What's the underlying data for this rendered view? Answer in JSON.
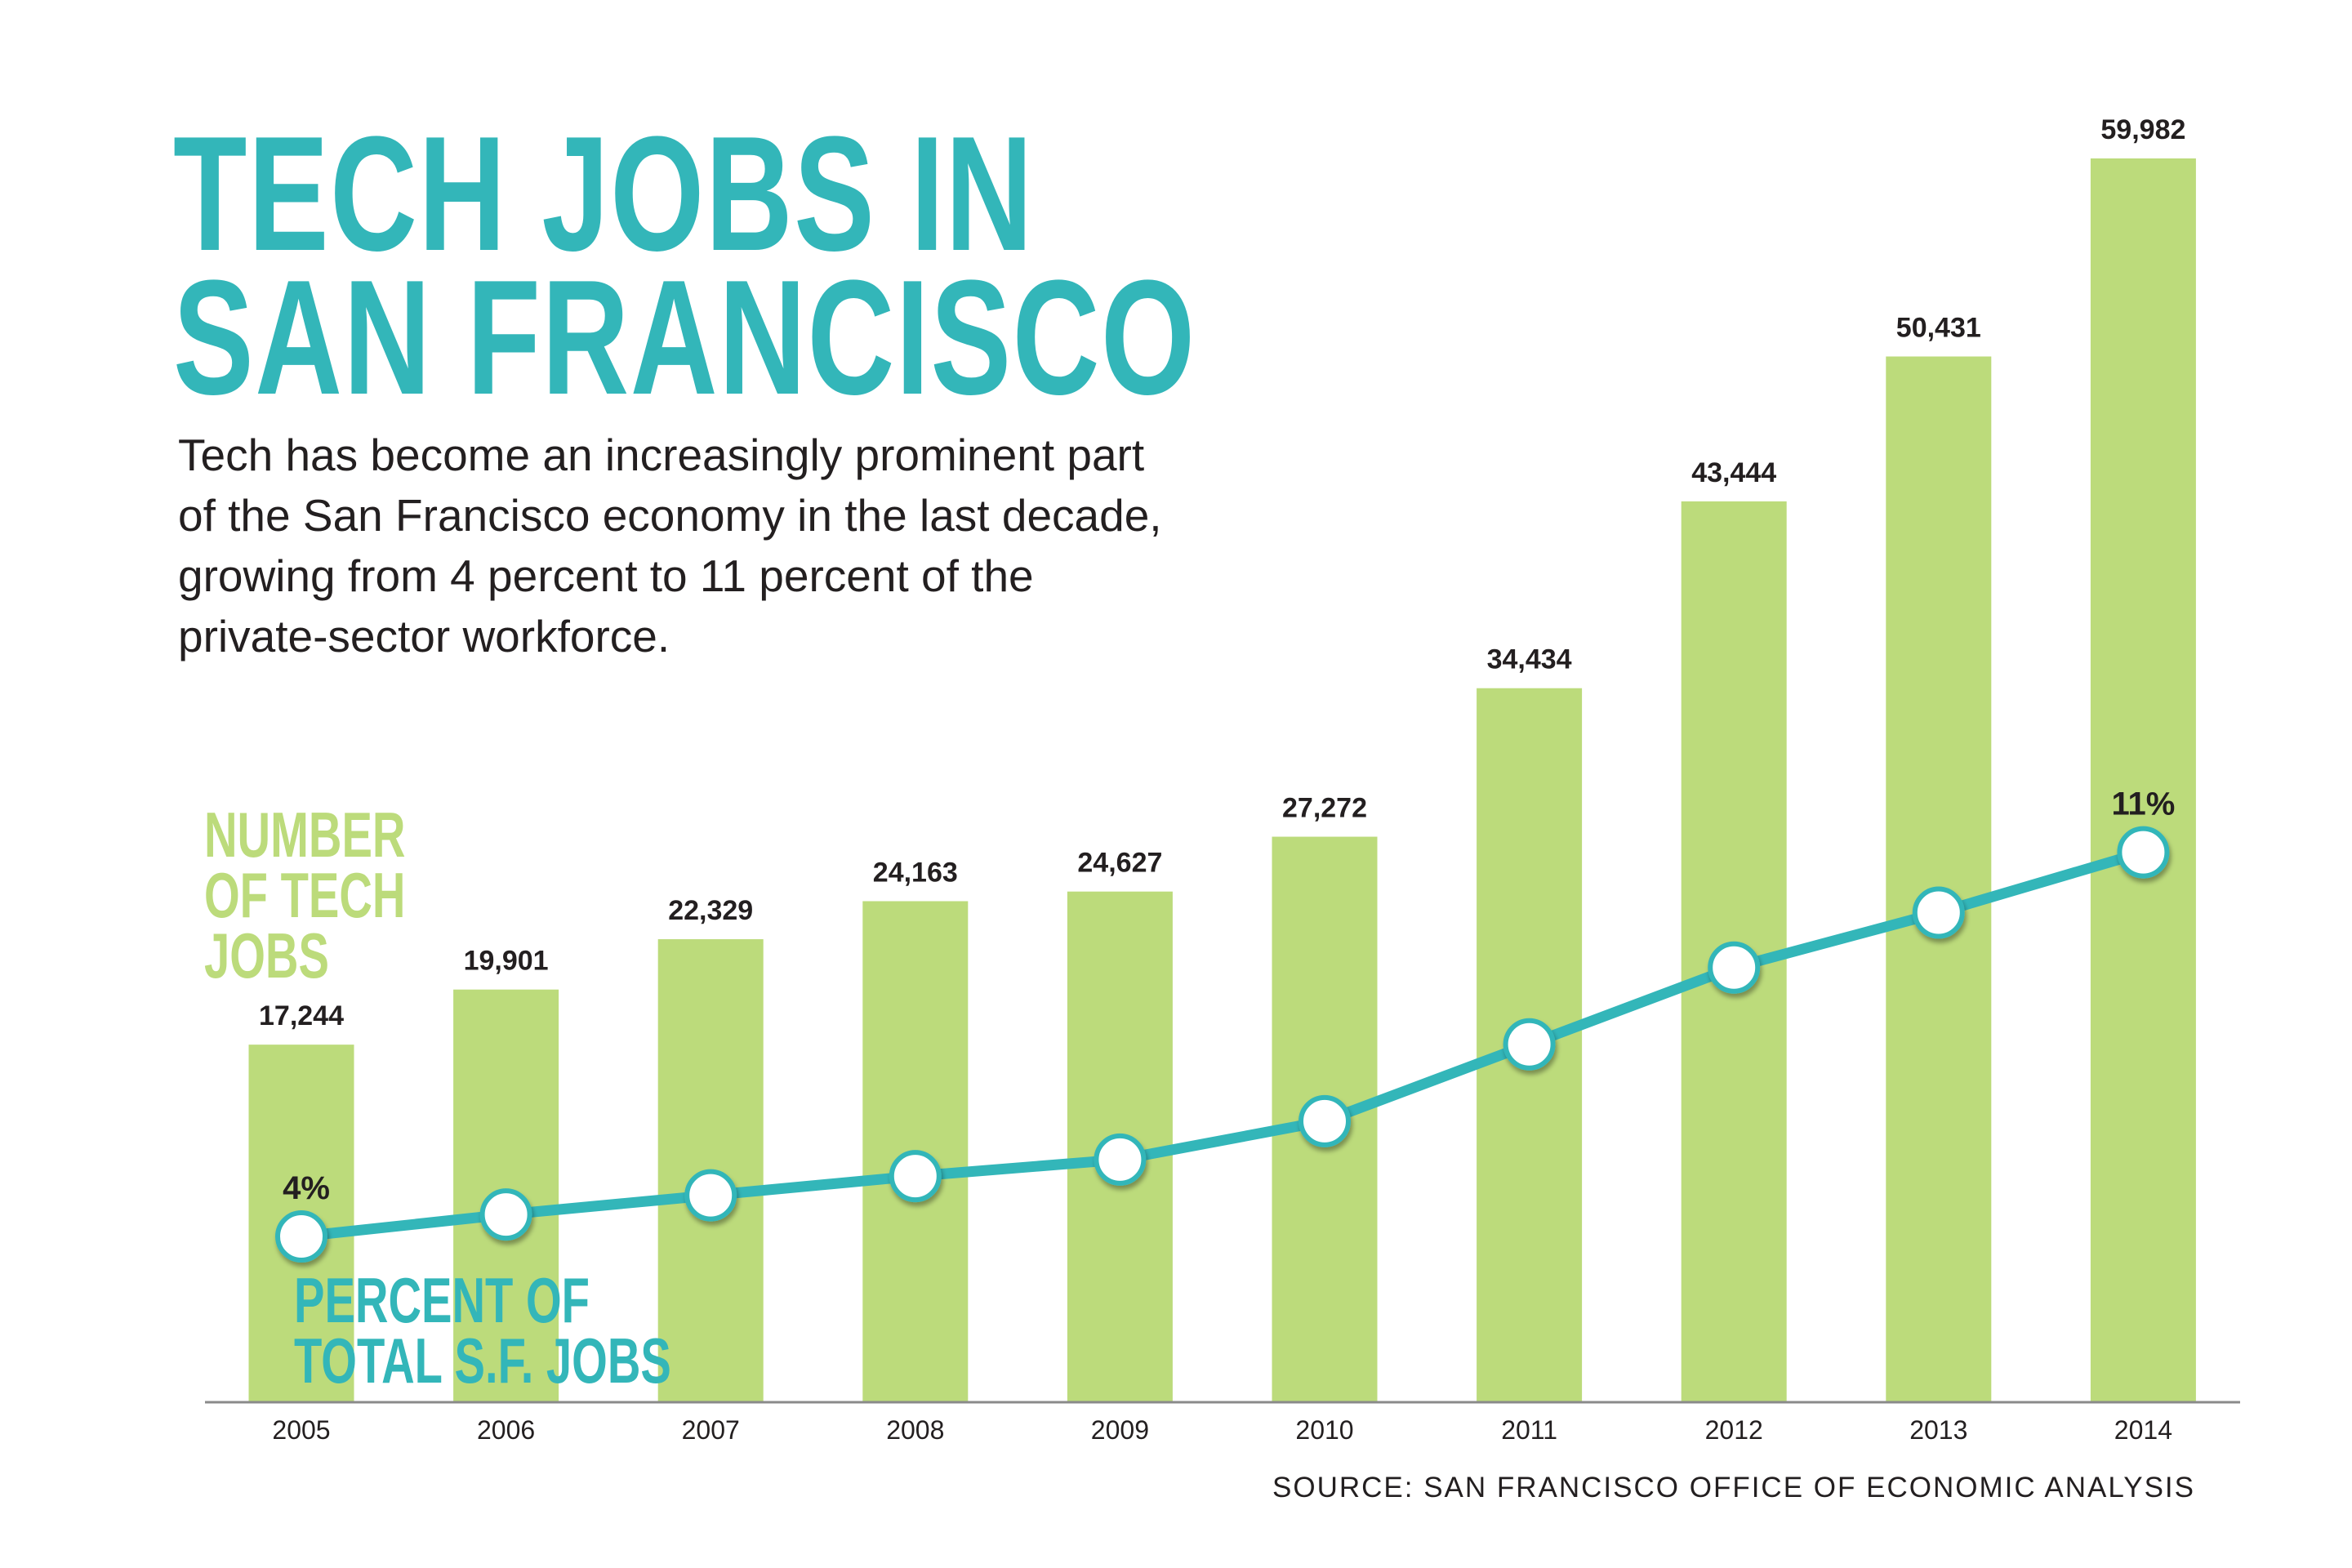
{
  "chart_data": {
    "type": "bar+line",
    "title": "TECH JOBS IN SAN FRANCISCO",
    "subtitle": "Tech has become an increasingly prominent part of the San Francisco economy in the last decade, growing from 4 percent to 11 percent of the private-sector workforce.",
    "categories": [
      "2005",
      "2006",
      "2007",
      "2008",
      "2009",
      "2010",
      "2011",
      "2012",
      "2013",
      "2014"
    ],
    "series": [
      {
        "name": "NUMBER OF TECH JOBS",
        "type": "bar",
        "color": "#bcdb7b",
        "values": [
          17244,
          19901,
          22329,
          24163,
          24627,
          27272,
          34434,
          43444,
          50431,
          59982
        ],
        "labels": [
          "17,244",
          "19,901",
          "22,329",
          "24,163",
          "24,627",
          "27,272",
          "34,434",
          "43,444",
          "50,431",
          "59,982"
        ]
      },
      {
        "name": "PERCENT OF TOTAL S.F. JOBS",
        "type": "line",
        "color": "#33b6b9",
        "values": [
          4,
          4.4,
          4.75,
          5.1,
          5.4,
          6.1,
          7.5,
          8.9,
          9.9,
          11
        ],
        "point_labels": {
          "0": "4%",
          "9": "11%"
        }
      }
    ],
    "ylim": [
      0,
      60000
    ],
    "grid": false,
    "source": "SOURCE: SAN FRANCISCO OFFICE OF ECONOMIC ANALYSIS"
  },
  "title_lines": [
    "TECH JOBS IN",
    "SAN FRANCISCO"
  ],
  "desc_lines": [
    "Tech has become an increasingly prominent part",
    "of the San Francisco economy in the last decade,",
    "growing from 4 percent to 11 percent of the",
    "private-sector workforce."
  ],
  "bar_label_lines": [
    "NUMBER",
    "OF TECH",
    "JOBS"
  ],
  "line_label_lines": [
    "PERCENT OF",
    "TOTAL S.F. JOBS"
  ]
}
